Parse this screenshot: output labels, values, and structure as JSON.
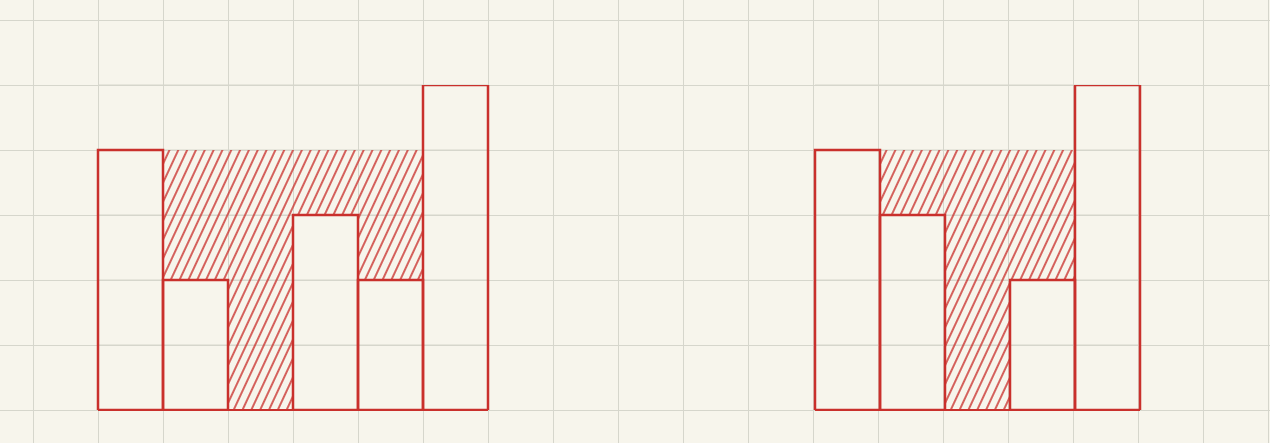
{
  "chart_data": [
    {
      "type": "bar",
      "stacked": true,
      "grid": true,
      "tick_labels": false,
      "categories": [
        null,
        null,
        null,
        null,
        null,
        null
      ],
      "ylim": [
        0,
        5
      ],
      "yticks": [
        0,
        1,
        2,
        3,
        4,
        5
      ],
      "series": [
        {
          "color": "#c9302c",
          "values": [
            4,
            2,
            0,
            3,
            2,
            5
          ]
        },
        {
          "color": "#c9302c",
          "values": [
            0,
            2,
            4,
            1,
            2,
            0
          ]
        }
      ]
    },
    {
      "type": "bar",
      "stacked": true,
      "grid": true,
      "tick_labels": false,
      "categories": [
        null,
        null,
        null,
        null,
        null
      ],
      "ylim": [
        0,
        5
      ],
      "yticks": [
        0,
        1,
        2,
        3,
        4,
        5
      ],
      "series": [
        {
          "color": "#c9302c",
          "values": [
            4,
            3,
            0,
            2,
            5
          ]
        },
        {
          "color": "#c9302c",
          "values": [
            0,
            1,
            4,
            2,
            0
          ]
        }
      ]
    }
  ]
}
